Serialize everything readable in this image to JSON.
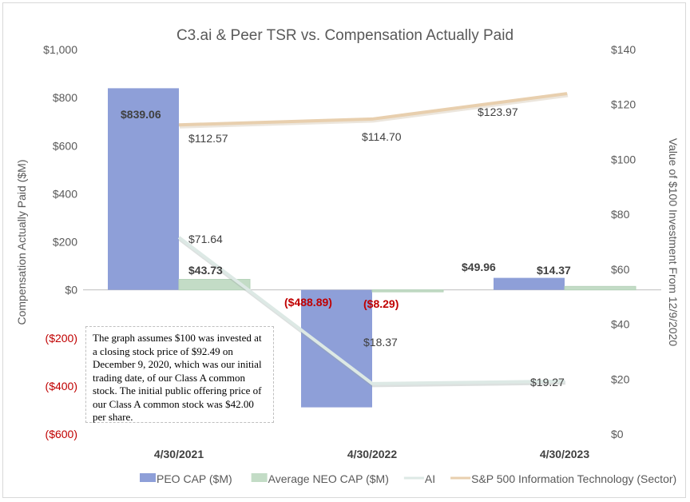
{
  "chart_data": {
    "type": "bar+line",
    "title": "C3.ai & Peer TSR vs. Compensation Actually Paid",
    "ylabel": "Compensation Actually Paid ($M)",
    "y2label": "Value of $100 Investment From 12/9/2020",
    "ylim": [
      -600,
      1000
    ],
    "y2lim": [
      0,
      140
    ],
    "yticks": [
      "$1,000",
      "$800",
      "$600",
      "$400",
      "$200",
      "$0",
      "($200)",
      "($400)",
      "($600)"
    ],
    "y2ticks": [
      "$140",
      "$120",
      "$100",
      "$80",
      "$60",
      "$40",
      "$20",
      "$0"
    ],
    "categories": [
      "4/30/2021",
      "4/30/2022",
      "4/30/2023"
    ],
    "grid": false,
    "legend_placement": "bottom",
    "series": [
      {
        "name": "PEO CAP ($M)",
        "type": "bar",
        "axis": "left",
        "color": "#8e9fd8",
        "values": [
          839.06,
          -488.89,
          49.96
        ],
        "labels": [
          "$839.06",
          "($488.89)",
          "$49.96"
        ]
      },
      {
        "name": "Average NEO CAP ($M)",
        "type": "bar",
        "axis": "left",
        "color": "#c3dcc6",
        "values": [
          43.73,
          -8.29,
          14.37
        ],
        "labels": [
          "$43.73",
          "($8.29)",
          "$14.37"
        ]
      },
      {
        "name": "AI",
        "type": "line",
        "axis": "right",
        "color": "#dde9e5",
        "values": [
          71.64,
          18.37,
          19.27
        ],
        "labels": [
          "$71.64",
          "$18.37",
          "$19.27"
        ]
      },
      {
        "name": "S&P 500 Information Technology (Sector)",
        "type": "line",
        "axis": "right",
        "color": "#e8cfae",
        "values": [
          112.57,
          114.7,
          123.97
        ],
        "labels": [
          "$112.57",
          "$114.70",
          "$123.97"
        ]
      }
    ],
    "negative_label_color": "#c00000",
    "annotation": "The graph assumes $100 was invested at a closing stock price of $92.49 on December 9, 2020, which was our initial trading date, of our Class A common stock. The initial public offering price of our Class A common stock was $42.00 per share."
  }
}
